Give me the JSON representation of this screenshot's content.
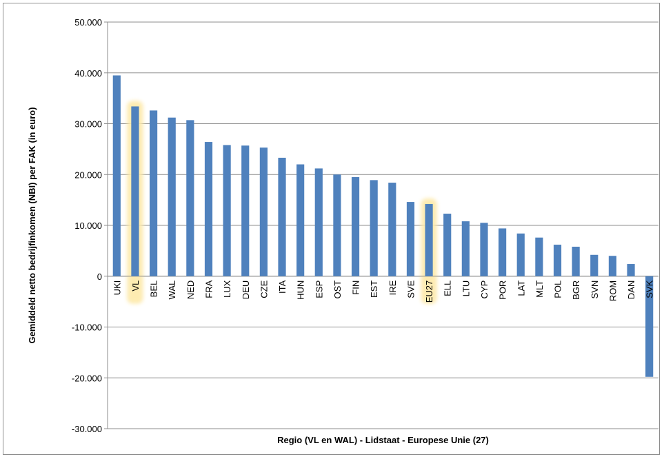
{
  "chart_data": {
    "type": "bar",
    "title": "",
    "xlabel": "Regio (VL en WAL) - Lidstaat - Europese Unie (27)",
    "ylabel": "Gemiddeld netto bedrijfinkomen (NBI) per FAK (in euro)",
    "ylim": [
      -30000,
      50000
    ],
    "yticks": [
      50000,
      40000,
      30000,
      20000,
      10000,
      0,
      -10000,
      -20000,
      -30000
    ],
    "ytick_labels": [
      "50.000",
      "40.000",
      "30.000",
      "20.000",
      "10.000",
      "0",
      "-10.000",
      "-20.000",
      "-30.000"
    ],
    "grid": true,
    "bar_color": "#4f81bd",
    "highlight_color": "#fde9a9",
    "highlighted": [
      "VL",
      "EU27"
    ],
    "categories": [
      "UKI",
      "VL",
      "BEL",
      "WAL",
      "NED",
      "FRA",
      "LUX",
      "DEU",
      "CZE",
      "ITA",
      "HUN",
      "ESP",
      "OST",
      "FIN",
      "EST",
      "IRE",
      "SVE",
      "EU27",
      "ELL",
      "LTU",
      "CYP",
      "POR",
      "LAT",
      "MLT",
      "POL",
      "BGR",
      "SVN",
      "ROM",
      "DAN",
      "SVK"
    ],
    "values": [
      39500,
      33400,
      32600,
      31200,
      30700,
      26400,
      25800,
      25700,
      25300,
      23300,
      22000,
      21200,
      20000,
      19500,
      18900,
      18400,
      14600,
      14200,
      12300,
      10800,
      10500,
      9400,
      8400,
      7600,
      6200,
      5800,
      4200,
      4000,
      2400,
      -19800
    ]
  }
}
